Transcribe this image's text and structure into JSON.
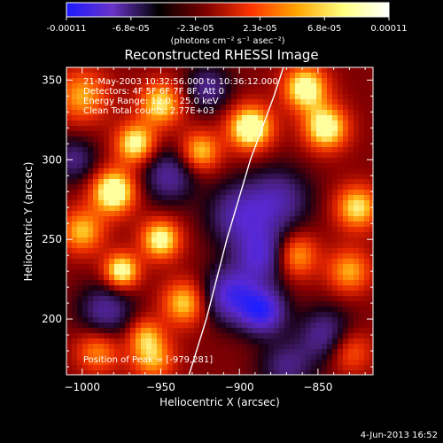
{
  "chart_data": {
    "type": "heatmap",
    "title": "Reconstructed RHESSI Image",
    "xlabel": "Heliocentric X (arcsec)",
    "ylabel": "Heliocentric Y (arcsec)",
    "x_ticks": [
      -1000,
      -950,
      -900,
      -850
    ],
    "y_ticks": [
      200,
      250,
      300,
      350
    ],
    "xlim": [
      -1010,
      -815
    ],
    "ylim": [
      165,
      358
    ],
    "colorbar": {
      "ticks": [
        "-0.00011",
        "-6.8e-05",
        "-2.3e-05",
        "2.3e-05",
        "6.8e-05",
        "0.00011"
      ],
      "range": [
        -0.00011,
        0.00011
      ],
      "unit_label": "(photons cm⁻² s⁻¹ asec⁻²)",
      "colors": [
        "#1a1aff",
        "#6a33c8",
        "#000000",
        "#7a0000",
        "#ff3300",
        "#ffa500",
        "#ffff80",
        "#ffffff"
      ]
    },
    "annotations": [
      "21-May-2003 10:32:56.000 to 10:36:12.000",
      "Detectors: 4F 5F 6F 7F 8F, Att 0",
      "Energy Range: 12.0 - 25.0 keV",
      "Clean    Total counts: 2.77E+03"
    ],
    "peak_label": "Position of Peak = [-979,281]",
    "limb_curve": [
      {
        "x": -932,
        "y": 165
      },
      {
        "x": -921,
        "y": 200
      },
      {
        "x": -908,
        "y": 250
      },
      {
        "x": -893,
        "y": 300
      },
      {
        "x": -878,
        "y": 340
      },
      {
        "x": -872,
        "y": 358
      }
    ],
    "blobs": [
      {
        "x": -980,
        "y": 280,
        "v": 1.0,
        "s": 10
      },
      {
        "x": -893,
        "y": 320,
        "v": 1.0,
        "s": 10
      },
      {
        "x": -966,
        "y": 310,
        "v": 0.85,
        "s": 9
      },
      {
        "x": -950,
        "y": 335,
        "v": 0.75,
        "s": 10
      },
      {
        "x": -1000,
        "y": 340,
        "v": 0.6,
        "s": 12
      },
      {
        "x": -945,
        "y": 290,
        "v": -0.6,
        "s": 12
      },
      {
        "x": -925,
        "y": 305,
        "v": 0.7,
        "s": 9
      },
      {
        "x": -845,
        "y": 320,
        "v": 0.9,
        "s": 10
      },
      {
        "x": -858,
        "y": 345,
        "v": 0.9,
        "s": 10
      },
      {
        "x": -875,
        "y": 275,
        "v": -0.6,
        "s": 14
      },
      {
        "x": -900,
        "y": 265,
        "v": -0.65,
        "s": 14
      },
      {
        "x": -865,
        "y": 240,
        "v": 0.7,
        "s": 10
      },
      {
        "x": -825,
        "y": 270,
        "v": 0.75,
        "s": 10
      },
      {
        "x": -975,
        "y": 230,
        "v": 0.9,
        "s": 8
      },
      {
        "x": -950,
        "y": 250,
        "v": 0.85,
        "s": 9
      },
      {
        "x": -1000,
        "y": 255,
        "v": 0.65,
        "s": 10
      },
      {
        "x": -935,
        "y": 210,
        "v": 0.7,
        "s": 10
      },
      {
        "x": -985,
        "y": 205,
        "v": -0.6,
        "s": 12
      },
      {
        "x": -905,
        "y": 215,
        "v": -0.9,
        "s": 12
      },
      {
        "x": -885,
        "y": 205,
        "v": -1.0,
        "s": 10
      },
      {
        "x": -885,
        "y": 240,
        "v": -0.8,
        "s": 12
      },
      {
        "x": -845,
        "y": 190,
        "v": -0.6,
        "s": 12
      },
      {
        "x": -830,
        "y": 230,
        "v": 0.6,
        "s": 10
      },
      {
        "x": -955,
        "y": 175,
        "v": 0.6,
        "s": 10
      },
      {
        "x": -990,
        "y": 180,
        "v": 0.55,
        "s": 10
      },
      {
        "x": -830,
        "y": 180,
        "v": 0.5,
        "s": 10
      },
      {
        "x": -870,
        "y": 170,
        "v": -0.5,
        "s": 12
      },
      {
        "x": -1005,
        "y": 300,
        "v": -0.5,
        "s": 10
      },
      {
        "x": -920,
        "y": 345,
        "v": -0.55,
        "s": 10
      },
      {
        "x": -960,
        "y": 190,
        "v": 0.5,
        "s": 8
      }
    ]
  },
  "footer": {
    "timestamp": "4-Jun-2013 16:52"
  }
}
